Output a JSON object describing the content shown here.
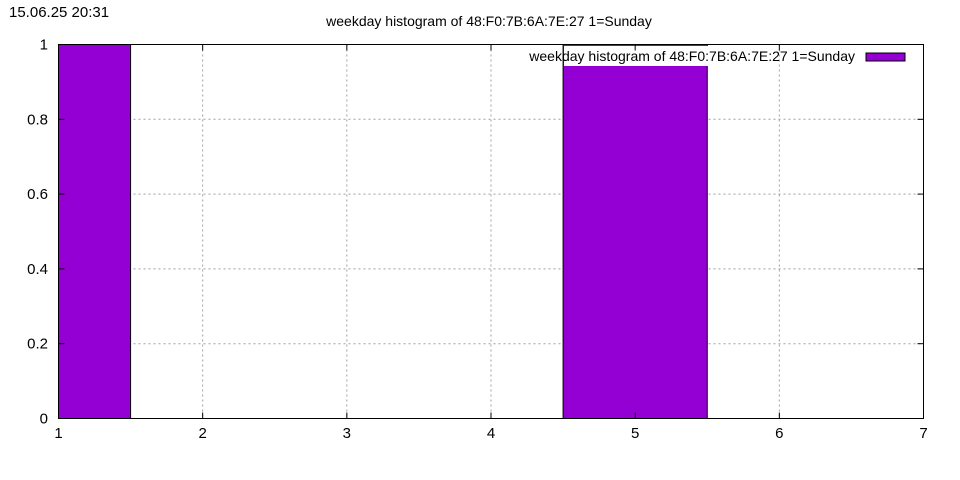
{
  "timestamp": "15.06.25 20:31",
  "chart_data": {
    "type": "bar",
    "title": "weekday histogram of 48:F0:7B:6A:7E:27 1=Sunday",
    "xlabel": "",
    "ylabel": "",
    "xlim": [
      1,
      7
    ],
    "ylim": [
      0,
      1
    ],
    "xticks": [
      "1",
      "2",
      "3",
      "4",
      "5",
      "6",
      "7"
    ],
    "yticks": [
      "0",
      "0.2",
      "0.4",
      "0.6",
      "0.8",
      "1"
    ],
    "grid": true,
    "legend_position": "top-right",
    "bar_color": "#9400d3",
    "series": [
      {
        "name": "weekday histogram of 48:F0:7B:6A:7E:27 1=Sunday",
        "bins": [
          {
            "x0": 1.0,
            "x1": 1.5,
            "value": 1
          },
          {
            "x0": 4.5,
            "x1": 5.5,
            "value": 1
          }
        ]
      }
    ]
  }
}
